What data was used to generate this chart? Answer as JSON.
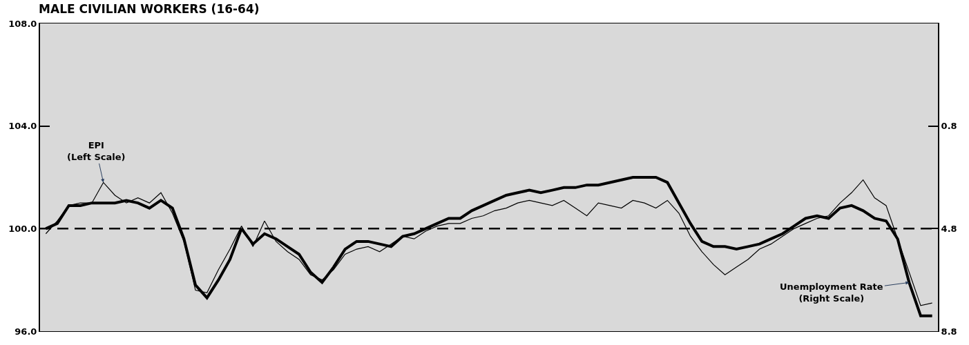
{
  "chart_data": {
    "type": "line",
    "title": "MALE CIVILIAN WORKERS (16-64)",
    "categories": [
      null,
      null,
      null,
      null,
      null,
      null,
      null,
      null,
      null,
      null,
      null,
      null,
      null,
      null,
      null,
      null,
      null,
      null,
      null,
      null,
      null,
      null,
      null,
      null,
      null,
      null,
      null,
      null,
      null,
      null,
      null,
      null,
      null,
      null,
      null,
      null,
      null,
      null,
      null,
      null,
      null,
      null,
      null,
      null,
      null,
      null,
      null,
      null,
      null,
      null,
      null,
      null,
      null,
      null,
      null,
      null,
      null,
      null,
      null,
      null,
      null,
      null,
      null,
      null,
      null,
      null,
      null,
      null,
      null,
      null,
      null,
      null,
      null,
      null,
      null,
      null,
      null,
      null
    ],
    "series": [
      {
        "color": "#000000",
        "values": [
          99.8,
          100.3,
          100.9,
          101.0,
          101.0,
          101.8,
          101.3,
          101.0,
          101.2,
          101.0,
          101.4,
          100.6,
          99.5,
          97.6,
          97.5,
          98.4,
          99.2,
          100.1,
          99.3,
          100.3,
          99.5,
          99.1,
          98.8,
          98.2,
          98.0,
          98.4,
          99.0,
          99.2,
          99.3,
          99.1,
          99.4,
          99.7,
          99.6,
          99.9,
          100.1,
          100.2,
          100.2,
          100.4,
          100.5,
          100.7,
          100.8,
          101.0,
          101.1,
          101.0,
          100.9,
          101.1,
          100.8,
          100.5,
          101.0,
          100.9,
          100.8,
          101.1,
          101.0,
          100.8,
          101.1,
          100.6,
          99.7,
          99.1,
          98.6,
          98.2,
          98.5,
          98.8,
          99.2,
          99.4,
          99.7,
          100.0,
          100.2,
          100.4,
          100.5,
          101.0,
          101.4,
          101.9,
          101.2,
          100.9,
          99.6,
          98.3,
          97.0,
          97.1
        ]
      },
      {
        "color": "#000000",
        "axis": "y2",
        "values": [
          4.8,
          4.6,
          3.9,
          3.9,
          3.8,
          3.8,
          3.8,
          3.7,
          3.8,
          4.0,
          3.7,
          4.0,
          5.2,
          7.0,
          7.5,
          6.8,
          6.0,
          4.8,
          5.4,
          5.0,
          5.2,
          5.5,
          5.8,
          6.5,
          6.9,
          6.3,
          5.6,
          5.3,
          5.3,
          5.4,
          5.5,
          5.1,
          5.0,
          4.8,
          4.6,
          4.4,
          4.4,
          4.1,
          3.9,
          3.7,
          3.5,
          3.4,
          3.3,
          3.4,
          3.3,
          3.2,
          3.2,
          3.1,
          3.1,
          3.0,
          2.9,
          2.8,
          2.8,
          2.8,
          3.0,
          3.8,
          4.6,
          5.3,
          5.5,
          5.5,
          5.6,
          5.5,
          5.4,
          5.2,
          5.0,
          4.7,
          4.4,
          4.3,
          4.4,
          4.0,
          3.9,
          4.1,
          4.4,
          4.5,
          5.2,
          6.9,
          8.2,
          8.2
        ]
      }
    ],
    "ylim": [
      96,
      108
    ],
    "yticks": [
      {
        "value": 96,
        "label": "96.0"
      },
      {
        "value": 100,
        "label": "100.0"
      },
      {
        "value": 104,
        "label": "104.0"
      },
      {
        "value": 108,
        "label": "108.0"
      }
    ],
    "y2lim": [
      8.8,
      -3.2
    ],
    "y2ticks": [
      0.8,
      4.8,
      8.8
    ],
    "ref_lines": [
      {
        "axis": "y",
        "value": 100,
        "line_style": "dashed",
        "color": "#000000"
      }
    ],
    "annotations": [
      "EPI\n(Left Scale)",
      "Unemployment Rate\n(Right Scale)"
    ],
    "tick_labels": "y",
    "grid": false,
    "marker": "none",
    "line_style": "solid"
  }
}
